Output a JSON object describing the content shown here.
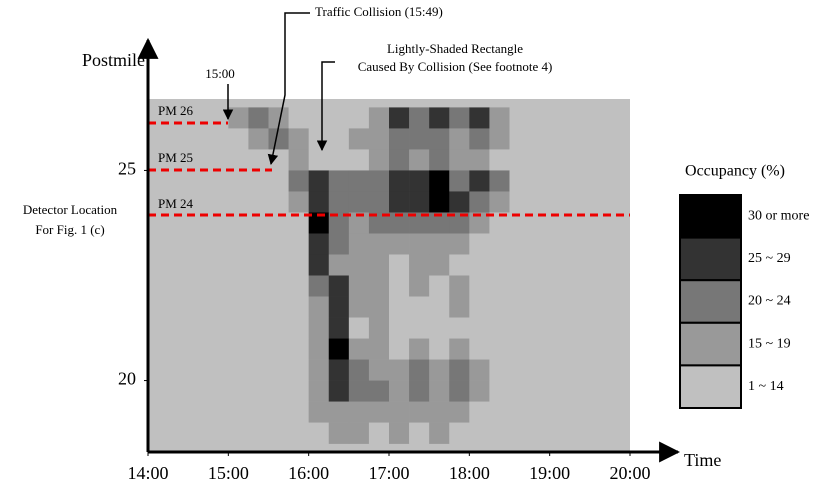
{
  "chart_data": {
    "type": "heatmap",
    "ylabel": "Postmile",
    "xlabel": "Time",
    "xlim": [
      14,
      20
    ],
    "ylim": [
      18.3,
      26.7
    ],
    "xticks": [
      {
        "value": 14,
        "label": "14:00"
      },
      {
        "value": 15,
        "label": "15:00"
      },
      {
        "value": 16,
        "label": "16:00"
      },
      {
        "value": 17,
        "label": "17:00"
      },
      {
        "value": 18,
        "label": "18:00"
      },
      {
        "value": 19,
        "label": "19:00"
      },
      {
        "value": 20,
        "label": "20:00"
      }
    ],
    "yticks": [
      20,
      25
    ],
    "x_edges": [
      15,
      15.25,
      15.5,
      15.75,
      16,
      16.25,
      16.5,
      16.75,
      17,
      17.25,
      17.5,
      17.75,
      18,
      18.25,
      18.5,
      18.75,
      19
    ],
    "y_edges": [
      26.5,
      26,
      25.5,
      25,
      24.5,
      24,
      23.5,
      23,
      22.5,
      22,
      21.5,
      21,
      20.5,
      20,
      19.5,
      19,
      18.5
    ],
    "z": [
      [
        17,
        22,
        17,
        10,
        10,
        10,
        10,
        17,
        27,
        22,
        27,
        22,
        27,
        17,
        10,
        10
      ],
      [
        10,
        17,
        22,
        17,
        10,
        10,
        17,
        17,
        22,
        22,
        22,
        17,
        22,
        17,
        10,
        10
      ],
      [
        10,
        10,
        10,
        17,
        10,
        10,
        10,
        17,
        22,
        17,
        22,
        17,
        17,
        10,
        10,
        10
      ],
      [
        10,
        10,
        10,
        22,
        27,
        22,
        22,
        22,
        27,
        27,
        32,
        22,
        27,
        22,
        10,
        10
      ],
      [
        10,
        10,
        10,
        17,
        27,
        22,
        22,
        22,
        27,
        27,
        32,
        27,
        22,
        17,
        10,
        10
      ],
      [
        10,
        10,
        10,
        10,
        32,
        22,
        17,
        22,
        22,
        22,
        22,
        22,
        17,
        10,
        10,
        10
      ],
      [
        10,
        10,
        10,
        10,
        27,
        22,
        17,
        17,
        17,
        17,
        17,
        17,
        10,
        10,
        10,
        10
      ],
      [
        10,
        10,
        10,
        10,
        27,
        17,
        17,
        17,
        10,
        17,
        17,
        10,
        10,
        10,
        10,
        10
      ],
      [
        10,
        10,
        10,
        10,
        22,
        27,
        17,
        17,
        10,
        17,
        10,
        17,
        10,
        10,
        10,
        10
      ],
      [
        10,
        10,
        10,
        10,
        17,
        27,
        17,
        17,
        10,
        10,
        10,
        17,
        10,
        10,
        10,
        10
      ],
      [
        10,
        10,
        10,
        10,
        17,
        27,
        10,
        17,
        10,
        10,
        10,
        10,
        10,
        10,
        10,
        10
      ],
      [
        10,
        10,
        10,
        10,
        17,
        32,
        17,
        17,
        10,
        17,
        10,
        17,
        10,
        10,
        10,
        10
      ],
      [
        10,
        10,
        10,
        10,
        17,
        27,
        22,
        17,
        17,
        22,
        17,
        22,
        17,
        10,
        10,
        10
      ],
      [
        10,
        10,
        10,
        10,
        17,
        27,
        22,
        22,
        17,
        22,
        17,
        22,
        17,
        10,
        10,
        10
      ],
      [
        10,
        10,
        10,
        10,
        17,
        17,
        17,
        17,
        17,
        17,
        17,
        17,
        10,
        10,
        10,
        10
      ],
      [
        10,
        10,
        10,
        10,
        10,
        17,
        17,
        10,
        17,
        10,
        17,
        10,
        10,
        10,
        10,
        10
      ]
    ],
    "legend_title": "Occupancy (%)",
    "legend": [
      {
        "label": "30 or more",
        "min": 30,
        "color": "#000000"
      },
      {
        "label": "25 ~ 29",
        "min": 25,
        "color": "#333333"
      },
      {
        "label": "20 ~ 24",
        "min": 20,
        "color": "#777777"
      },
      {
        "label": "15 ~ 19",
        "min": 15,
        "color": "#999999"
      },
      {
        "label": "1 ~ 14",
        "min": 1,
        "color": "#c0c0c0"
      }
    ],
    "annotations": {
      "collision": "Traffic Collision (15:49)",
      "rectangle": [
        "Lightly-Shaded Rectangle",
        "Caused By Collision (See footnote 4)"
      ],
      "start": "15:00",
      "pm26": "PM 26",
      "pm25": "PM 25",
      "pm24": "PM 24",
      "detector": [
        "Detector Location",
        "For Fig. 1 (c)"
      ]
    }
  }
}
